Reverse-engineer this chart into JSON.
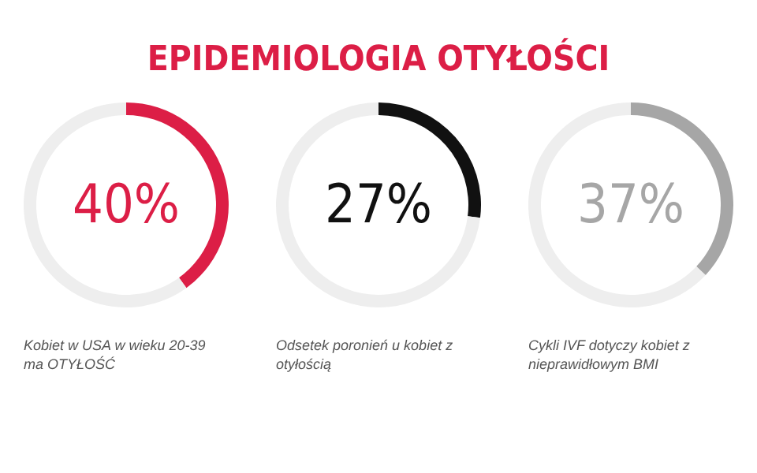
{
  "chart_data": [
    {
      "type": "donut",
      "title": "EPIDEMIOLOGIA OTYŁOŚCI",
      "categories": [
        null,
        null
      ],
      "values": [
        40,
        60
      ],
      "colors": [
        "#dc1e46",
        "#eeeeee"
      ],
      "value_labels": [
        "40%",
        null
      ],
      "annotations": [
        "Kobiet w USA w wieku 20-39 ma OTYŁOŚĆ"
      ]
    },
    {
      "type": "donut",
      "categories": [
        null,
        null
      ],
      "values": [
        27,
        73
      ],
      "colors": [
        "#111111",
        "#eeeeee"
      ],
      "value_labels": [
        "27%",
        null
      ],
      "annotations": [
        "Odsetek poronień u kobiet z otyłością"
      ]
    },
    {
      "type": "donut",
      "categories": [
        null,
        null
      ],
      "values": [
        37,
        63
      ],
      "colors": [
        "#a6a6a6",
        "#eeeeee"
      ],
      "value_labels": [
        "37%",
        null
      ],
      "annotations": [
        "Cykli IVF dotyczy kobiet z nieprawidłowym BMI"
      ]
    }
  ]
}
